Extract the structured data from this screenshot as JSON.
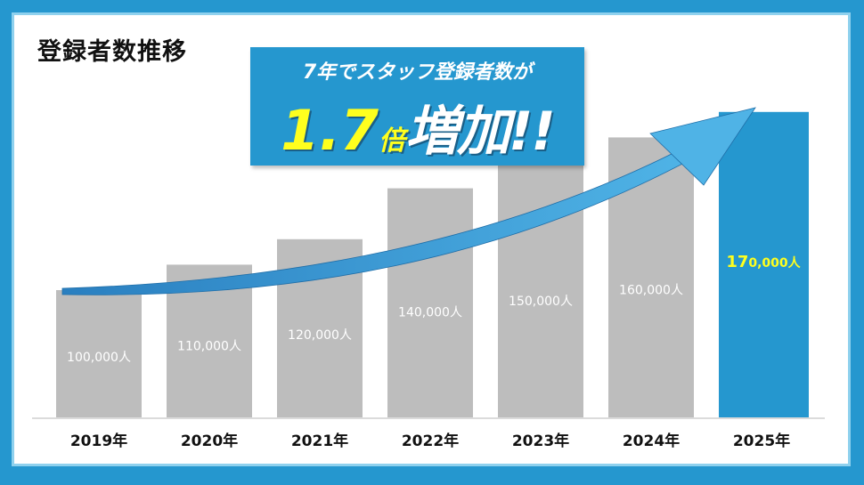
{
  "title": "登録者数推移",
  "callout": {
    "line1": "7年でスタッフ登録者数が",
    "multiplier": "1.7",
    "multiplier_suffix": "倍",
    "increase": "増加!!"
  },
  "colors": {
    "frame": "#2597cf",
    "frame_border": "#8fd1ee",
    "bar": "#bdbdbd",
    "bar_highlight": "#2597cf",
    "highlight_text": "#ffff1e",
    "arrow": "#2f8fcf"
  },
  "chart_data": {
    "type": "bar",
    "title": "登録者数推移",
    "xlabel": "",
    "ylabel": "",
    "categories": [
      "2019年",
      "2020年",
      "2021年",
      "2022年",
      "2023年",
      "2024年",
      "2025年"
    ],
    "values": [
      100000,
      110000,
      120000,
      140000,
      150000,
      160000,
      170000
    ],
    "data_labels": [
      "100,000人",
      "110,000人",
      "120,000人",
      "140,000人",
      "150,000人",
      "160,000人",
      "170,000人"
    ],
    "highlight_index": 6,
    "ylim": [
      0,
      180000
    ],
    "grid": false,
    "legend": "none"
  }
}
